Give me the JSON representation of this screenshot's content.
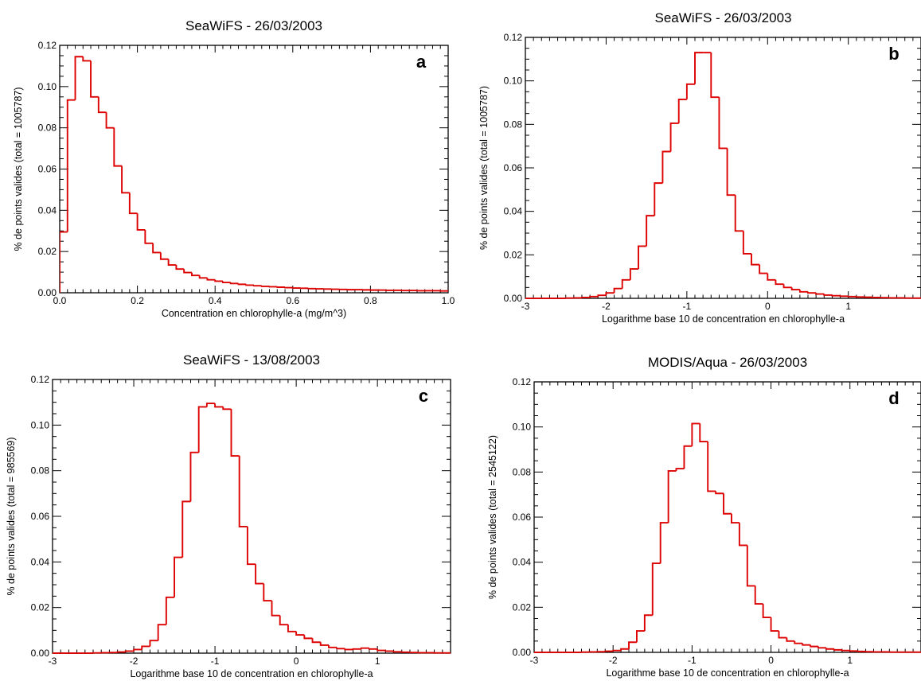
{
  "colors": {
    "series": "#dd0000",
    "axes": "#000000",
    "background": "#ffffff"
  },
  "chart_data": [
    {
      "type": "bar",
      "panel": "a",
      "title": "SeaWiFS - 26/03/2003",
      "xlabel": "Concentration en chlorophylle-a (mg/m^3)",
      "ylabel": "% de points valides (total = 1005787)",
      "xlim": [
        0,
        1
      ],
      "ylim": [
        0,
        0.12
      ],
      "xticks": [
        0,
        0.2,
        0.4,
        0.6,
        0.8,
        1.0
      ],
      "xtick_labels": [
        "0.0",
        "0.2",
        "0.4",
        "0.6",
        "0.8",
        "1.0"
      ],
      "yticks": [
        0,
        0.02,
        0.04,
        0.06,
        0.08,
        0.1,
        0.12
      ],
      "ytick_labels": [
        "0.00",
        "0.02",
        "0.04",
        "0.06",
        "0.08",
        "0.10",
        "0.12"
      ],
      "bin_start": 0,
      "bin_width": 0.02,
      "values": [
        0.0295,
        0.0935,
        0.1145,
        0.1125,
        0.095,
        0.0875,
        0.08,
        0.0615,
        0.0485,
        0.0385,
        0.0305,
        0.024,
        0.0195,
        0.0163,
        0.0135,
        0.0115,
        0.0098,
        0.0084,
        0.0072,
        0.0063,
        0.0056,
        0.005,
        0.0045,
        0.0041,
        0.0037,
        0.0034,
        0.0031,
        0.0029,
        0.0027,
        0.0025,
        0.0023,
        0.0022,
        0.002,
        0.0019,
        0.0018,
        0.0017,
        0.0016,
        0.0015,
        0.0015,
        0.0014,
        0.0013,
        0.0013,
        0.0012,
        0.0012,
        0.0011,
        0.0011,
        0.001,
        0.001,
        0.001,
        0.0009
      ]
    },
    {
      "type": "bar",
      "panel": "b",
      "title": "SeaWiFS - 26/03/2003",
      "xlabel": "Logarithme base 10 de concentration en chlorophylle-a",
      "ylabel": "% de points valides (total = 1005787)",
      "xlim": [
        -3,
        1.9
      ],
      "ylim": [
        0,
        0.12
      ],
      "xticks": [
        -3,
        -2,
        -1,
        0,
        1
      ],
      "xtick_labels": [
        "-3",
        "-2",
        "-1",
        "0",
        "1"
      ],
      "yticks": [
        0,
        0.02,
        0.04,
        0.06,
        0.08,
        0.1,
        0.12
      ],
      "ytick_labels": [
        "0.00",
        "0.02",
        "0.04",
        "0.06",
        "0.08",
        "0.10",
        "0.12"
      ],
      "bin_start": -3,
      "bin_width": 0.1,
      "values": [
        0,
        0,
        0,
        0,
        0,
        0.0001,
        0.0002,
        0.0004,
        0.0008,
        0.0014,
        0.0025,
        0.0045,
        0.0085,
        0.0135,
        0.024,
        0.038,
        0.053,
        0.0675,
        0.0805,
        0.0915,
        0.0985,
        0.113,
        0.113,
        0.0925,
        0.069,
        0.0475,
        0.031,
        0.0205,
        0.0155,
        0.0115,
        0.0085,
        0.0065,
        0.005,
        0.004,
        0.003,
        0.0025,
        0.002,
        0.0015,
        0.0012,
        0.001,
        0.0008,
        0.0006,
        0.0005,
        0.0004,
        0.0003,
        0.0002,
        0.0002,
        0.0001,
        0.0001
      ]
    },
    {
      "type": "bar",
      "panel": "c",
      "title": "SeaWiFS - 13/08/2003",
      "xlabel": "Logarithme base 10 de concentration en chlorophylle-a",
      "ylabel": "% de points valides (total = 985569)",
      "xlim": [
        -3,
        1.9
      ],
      "ylim": [
        0,
        0.12
      ],
      "xticks": [
        -3,
        -2,
        -1,
        0,
        1
      ],
      "xtick_labels": [
        "-3",
        "-2",
        "-1",
        "0",
        "1"
      ],
      "yticks": [
        0,
        0.02,
        0.04,
        0.06,
        0.08,
        0.1,
        0.12
      ],
      "ytick_labels": [
        "0.00",
        "0.02",
        "0.04",
        "0.06",
        "0.08",
        "0.10",
        "0.12"
      ],
      "bin_start": -3,
      "bin_width": 0.1,
      "values": [
        0,
        0,
        0,
        0,
        0,
        0.0001,
        0.0002,
        0.0003,
        0.0005,
        0.0009,
        0.0016,
        0.003,
        0.0055,
        0.0125,
        0.0245,
        0.042,
        0.0665,
        0.088,
        0.108,
        0.1095,
        0.108,
        0.107,
        0.0865,
        0.0555,
        0.039,
        0.0305,
        0.023,
        0.0165,
        0.0125,
        0.0095,
        0.008,
        0.0065,
        0.0048,
        0.0035,
        0.0025,
        0.002,
        0.0016,
        0.0018,
        0.0022,
        0.0018,
        0.0012,
        0.0009,
        0.0006,
        0.0004,
        0.0003,
        0.0002,
        0.0002,
        0.0001,
        0.0001
      ]
    },
    {
      "type": "bar",
      "panel": "d",
      "title": "MODIS/Aqua - 26/03/2003",
      "xlabel": "Logarithme base 10 de concentration en chlorophylle-a",
      "ylabel": "% de points valides (total = 2545122)",
      "xlim": [
        -3,
        1.9
      ],
      "ylim": [
        0,
        0.12
      ],
      "xticks": [
        -3,
        -2,
        -1,
        0,
        1
      ],
      "xtick_labels": [
        "-3",
        "-2",
        "-1",
        "0",
        "1"
      ],
      "yticks": [
        0,
        0.02,
        0.04,
        0.06,
        0.08,
        0.1,
        0.12
      ],
      "ytick_labels": [
        "0.00",
        "0.02",
        "0.04",
        "0.06",
        "0.08",
        "0.10",
        "0.12"
      ],
      "bin_start": -3,
      "bin_width": 0.1,
      "values": [
        0,
        0,
        0,
        0,
        0,
        0,
        0.0001,
        0.0002,
        0.0003,
        0.0005,
        0.0008,
        0.0015,
        0.0045,
        0.0095,
        0.0165,
        0.0395,
        0.0575,
        0.0805,
        0.0815,
        0.0915,
        0.1015,
        0.0935,
        0.0715,
        0.0705,
        0.0615,
        0.0575,
        0.0475,
        0.0295,
        0.0215,
        0.0155,
        0.0095,
        0.0065,
        0.005,
        0.004,
        0.0033,
        0.0026,
        0.002,
        0.0015,
        0.0011,
        0.0008,
        0.0006,
        0.0004,
        0.0003,
        0.0002,
        0.0002,
        0.0001,
        0.0001,
        0.0001,
        0.0001
      ]
    }
  ]
}
